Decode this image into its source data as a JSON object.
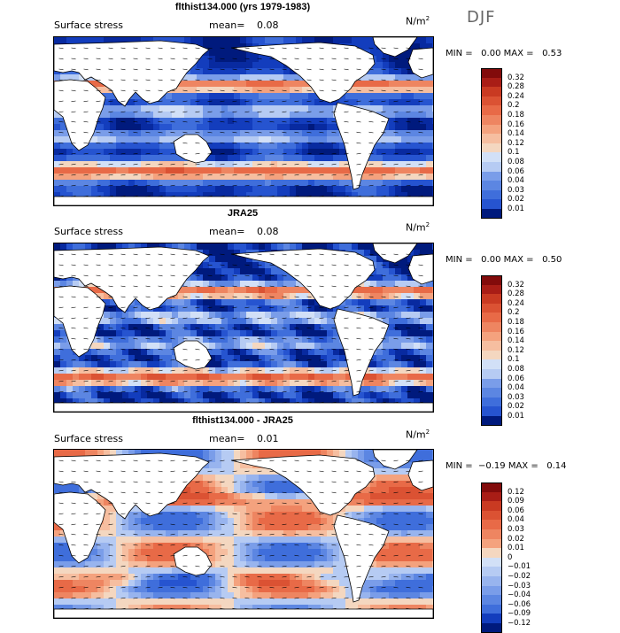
{
  "season": "DJF",
  "palette": {
    "pos": [
      "#f4d7c0",
      "#f6bea0",
      "#f4a27e",
      "#ee8561",
      "#e86a47",
      "#db5233",
      "#c93a22",
      "#a91d16",
      "#820b0b"
    ],
    "neg": [
      "#d2e0f7",
      "#b6cbf3",
      "#98b4ee",
      "#7a9de9",
      "#5c86e2",
      "#3f6edb",
      "#2654d0",
      "#133dbd",
      "#082aa0",
      "#001a7d"
    ],
    "land": "#ffffff",
    "coast": "#000000"
  },
  "panels": [
    {
      "title": "flthist134.000 (yrs 1979-1983)",
      "field_label": "Surface stress",
      "mean_label": "mean=",
      "mean_value": "0.08",
      "units": "N/m",
      "units_exp": "2",
      "min_label": "MIN =",
      "min_value": "0.00",
      "max_label": "MAX =",
      "max_value": "0.53",
      "colorbar": [
        "0.32",
        "0.28",
        "0.24",
        "0.2",
        "0.18",
        "0.16",
        "0.14",
        "0.12",
        "0.1",
        "0.08",
        "0.06",
        "0.04",
        "0.03",
        "0.02",
        "0.01"
      ]
    },
    {
      "title": "JRA25",
      "field_label": "Surface stress",
      "mean_label": "mean=",
      "mean_value": "0.08",
      "units": "N/m",
      "units_exp": "2",
      "min_label": "MIN =",
      "min_value": "0.00",
      "max_label": "MAX =",
      "max_value": "0.50",
      "colorbar": [
        "0.32",
        "0.28",
        "0.24",
        "0.2",
        "0.18",
        "0.16",
        "0.14",
        "0.12",
        "0.1",
        "0.08",
        "0.06",
        "0.04",
        "0.03",
        "0.02",
        "0.01"
      ]
    },
    {
      "title": "flthist134.000 - JRA25",
      "field_label": "Surface stress",
      "mean_label": "mean=",
      "mean_value": "0.01",
      "units": "N/m",
      "units_exp": "2",
      "min_label": "MIN =",
      "min_value": "−0.19",
      "max_label": "MAX =",
      "max_value": "0.14",
      "colorbar": [
        "0.12",
        "0.09",
        "0.06",
        "0.04",
        "0.03",
        "0.02",
        "0.01",
        "0",
        "−0.01",
        "−0.02",
        "−0.03",
        "−0.04",
        "−0.06",
        "−0.09",
        "−0.12"
      ]
    }
  ]
}
